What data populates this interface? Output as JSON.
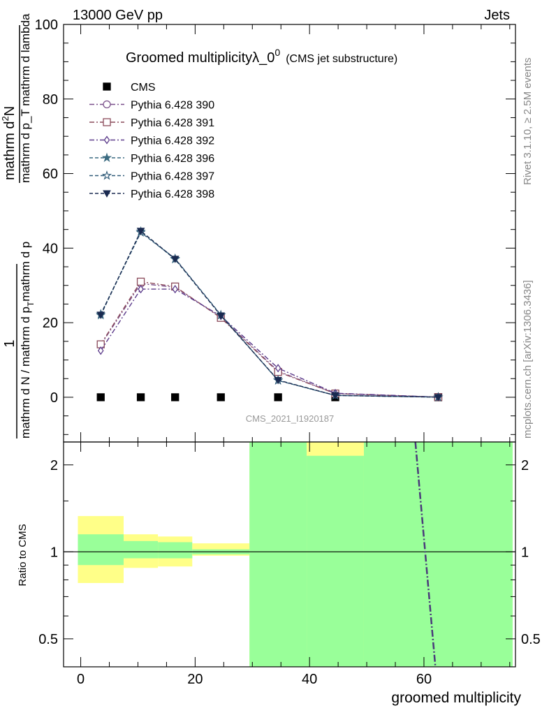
{
  "header": {
    "left": "13000 GeV pp",
    "right": "Jets"
  },
  "side_labels": {
    "rivet": "Rivet 3.1.10, ≥ 2.5M events",
    "mcplots": "mcplots.cern.ch [arXiv:1306.3436]"
  },
  "plot_title": {
    "main": "Groomed multiplicityλ_0",
    "sup": "0",
    "sub": "(CMS jet substructure)"
  },
  "analysis_id": "CMS_2021_I1920187",
  "ylabel_main": {
    "one": "1",
    "denominator": "mathrm d N / mathrm d p",
    "denominator_sub": "T",
    "denominator_end": "mathrm d p",
    "numerator": "mathrm d",
    "numerator_sup": "2",
    "numerator_end": "N",
    "rest": "mathrm d p_T mathrm d lambda"
  },
  "ylabel_ratio": "Ratio to CMS",
  "xlabel": "groomed multiplicity",
  "colors": {
    "data": "#000000",
    "s390": "#7a4f8a",
    "s391": "#8b4a5a",
    "s392": "#5b3a8a",
    "s396": "#3a6a80",
    "s397": "#2f5a78",
    "s398": "#1a2a50",
    "band_stat": "#99ff99",
    "band_sys": "#ffff88"
  },
  "chart_data": [
    {
      "type": "line",
      "panel": "main",
      "xlim": [
        -3,
        76
      ],
      "ylim": [
        -12,
        100
      ],
      "yticks": [
        0,
        20,
        40,
        60,
        80,
        100
      ],
      "series": [
        {
          "name": "CMS",
          "marker": "square",
          "x": [
            3.5,
            10.5,
            16.5,
            24.5,
            34.5,
            44.5,
            62.5
          ],
          "y": [
            0,
            0,
            0,
            0,
            0,
            0,
            0
          ]
        },
        {
          "name": "Pythia 6.428 390",
          "marker": "circle-open",
          "dash": "dashdot",
          "x": [
            3.5,
            10.5,
            16.5,
            24.5,
            34.5,
            44.5,
            62.5
          ],
          "y": [
            14,
            30.5,
            29.5,
            21.5,
            7.0,
            1.0,
            0.05
          ]
        },
        {
          "name": "Pythia 6.428 391",
          "marker": "square-open",
          "dash": "dashdot",
          "x": [
            3.5,
            10.5,
            16.5,
            24.5,
            34.5,
            44.5,
            62.5
          ],
          "y": [
            14.2,
            31.0,
            29.7,
            21.3,
            6.8,
            1.0,
            0.05
          ]
        },
        {
          "name": "Pythia 6.428 392",
          "marker": "diamond-open",
          "dash": "dashdot",
          "x": [
            3.5,
            10.5,
            16.5,
            24.5,
            34.5,
            44.5,
            62.5
          ],
          "y": [
            12.5,
            29.0,
            29.0,
            21.8,
            7.8,
            1.1,
            0.05
          ]
        },
        {
          "name": "Pythia 6.428 396",
          "marker": "star",
          "dash": "dashed",
          "x": [
            3.5,
            10.5,
            16.5,
            24.5,
            34.5,
            44.5,
            62.5
          ],
          "y": [
            22.0,
            44.5,
            37.0,
            22.0,
            4.6,
            0.5,
            0.02
          ]
        },
        {
          "name": "Pythia 6.428 397",
          "marker": "star-open",
          "dash": "dashed",
          "x": [
            3.5,
            10.5,
            16.5,
            24.5,
            34.5,
            44.5,
            62.5
          ],
          "y": [
            22.3,
            44.2,
            37.2,
            22.1,
            4.5,
            0.5,
            0.02
          ]
        },
        {
          "name": "Pythia 6.428 398",
          "marker": "triangle-down",
          "dash": "dashed",
          "x": [
            3.5,
            10.5,
            16.5,
            24.5,
            34.5,
            44.5,
            62.5
          ],
          "y": [
            22.1,
            44.6,
            37.1,
            21.9,
            4.6,
            0.5,
            0.02
          ]
        }
      ],
      "legend": "top-left"
    },
    {
      "type": "area",
      "panel": "ratio",
      "xlim": [
        -3,
        76
      ],
      "ylim": [
        0.4,
        2.4
      ],
      "yscale": "log",
      "yticks": [
        0.5,
        1,
        2
      ],
      "xticks": [
        0,
        20,
        40,
        60
      ],
      "bins": [
        [
          -0.5,
          7.5
        ],
        [
          7.5,
          13.5
        ],
        [
          13.5,
          19.5
        ],
        [
          19.5,
          29.5
        ],
        [
          29.5,
          39.5
        ],
        [
          39.5,
          49.5
        ],
        [
          49.5,
          75.5
        ]
      ],
      "stat_band": [
        [
          0.9,
          1.15
        ],
        [
          0.95,
          1.09
        ],
        [
          0.95,
          1.08
        ],
        [
          0.98,
          1.02
        ],
        [
          0.4,
          2.4
        ],
        [
          0.4,
          2.15
        ],
        [
          0.4,
          2.4
        ]
      ],
      "sys_band": [
        [
          0.78,
          1.33
        ],
        [
          0.88,
          1.15
        ],
        [
          0.89,
          1.13
        ],
        [
          0.97,
          1.07
        ],
        [
          0.4,
          2.4
        ],
        [
          0.4,
          2.4
        ],
        [
          0.4,
          2.4
        ]
      ],
      "reference": 1,
      "mc_line": {
        "x": [
          58.5,
          62
        ],
        "y": [
          2.4,
          0.4
        ]
      }
    }
  ]
}
